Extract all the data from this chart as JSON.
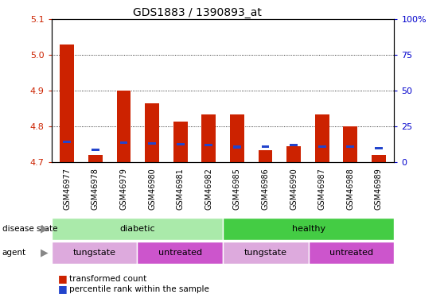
{
  "title": "GDS1883 / 1390893_at",
  "samples": [
    "GSM46977",
    "GSM46978",
    "GSM46979",
    "GSM46980",
    "GSM46981",
    "GSM46982",
    "GSM46985",
    "GSM46986",
    "GSM46990",
    "GSM46987",
    "GSM46988",
    "GSM46989"
  ],
  "red_values": [
    5.03,
    4.72,
    4.9,
    4.865,
    4.815,
    4.835,
    4.835,
    4.735,
    4.745,
    4.835,
    4.8,
    4.72
  ],
  "blue_values": [
    4.758,
    4.735,
    4.755,
    4.753,
    4.75,
    4.748,
    4.743,
    4.745,
    4.748,
    4.745,
    4.745,
    4.74
  ],
  "base_value": 4.7,
  "ylim_left": [
    4.7,
    5.1
  ],
  "yticks_left": [
    4.7,
    4.8,
    4.9,
    5.0,
    5.1
  ],
  "yticks_right": [
    0,
    25,
    50,
    75,
    100
  ],
  "ytick_labels_right": [
    "0",
    "25",
    "50",
    "75",
    "100%"
  ],
  "disease_state_groups": [
    {
      "label": "diabetic",
      "start": 0,
      "end": 6,
      "color": "#AAEAAA"
    },
    {
      "label": "healthy",
      "start": 6,
      "end": 12,
      "color": "#44CC44"
    }
  ],
  "agent_groups": [
    {
      "label": "tungstate",
      "start": 0,
      "end": 3,
      "color": "#DDAADD"
    },
    {
      "label": "untreated",
      "start": 3,
      "end": 6,
      "color": "#CC55CC"
    },
    {
      "label": "tungstate",
      "start": 6,
      "end": 9,
      "color": "#DDAADD"
    },
    {
      "label": "untreated",
      "start": 9,
      "end": 12,
      "color": "#CC55CC"
    }
  ],
  "bar_color_red": "#CC2200",
  "bar_color_blue": "#2244CC",
  "bar_width": 0.5,
  "bg_color": "#FFFFFF",
  "plot_bg_color": "#FFFFFF",
  "xtick_bg_color": "#CCCCCC",
  "axis_color_left": "#CC2200",
  "axis_color_right": "#0000CC",
  "legend_items": [
    "transformed count",
    "percentile rank within the sample"
  ],
  "legend_colors": [
    "#CC2200",
    "#2244CC"
  ],
  "grid_ticks": [
    4.8,
    4.9,
    5.0
  ]
}
